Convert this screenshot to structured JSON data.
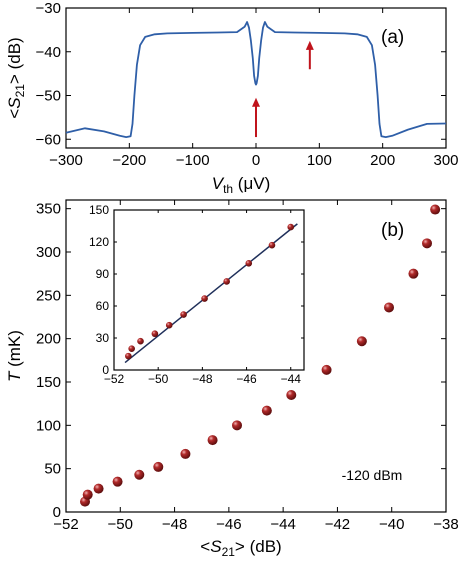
{
  "chart_data": [
    {
      "panel": "(a)",
      "type": "line",
      "xlabel": "V_th (μV)",
      "ylabel": "<S21> (dB)",
      "xlim": [
        -300,
        300
      ],
      "ylim": [
        -62,
        -30
      ],
      "xticks": [
        -300,
        -200,
        -100,
        0,
        100,
        200,
        300
      ],
      "yticks": [
        -60,
        -50,
        -40,
        -30
      ],
      "series": [
        {
          "color": "#2f5fa8",
          "x": [
            -300,
            -270,
            -240,
            -215,
            -205,
            -198,
            -195,
            -192,
            -188,
            -183,
            -175,
            -160,
            -140,
            -100,
            -60,
            -30,
            -18,
            -14,
            -11,
            -8,
            -5,
            -3,
            -1,
            0,
            1,
            3,
            5,
            8,
            11,
            14,
            18,
            30,
            60,
            100,
            140,
            160,
            175,
            183,
            188,
            192,
            195,
            198,
            205,
            215,
            240,
            270,
            300
          ],
          "y": [
            -58.5,
            -57.5,
            -58.2,
            -59.2,
            -59.5,
            -59.3,
            -56.5,
            -50,
            -43,
            -38.5,
            -36.6,
            -36.0,
            -35.8,
            -35.7,
            -35.6,
            -35.5,
            -34.3,
            -33.2,
            -34.5,
            -37.5,
            -41.5,
            -45.5,
            -47.2,
            -47.5,
            -47.2,
            -45.5,
            -41.5,
            -37.5,
            -34.5,
            -33.2,
            -34.3,
            -35.5,
            -35.6,
            -35.7,
            -35.8,
            -36.0,
            -36.6,
            -38.5,
            -43,
            -50,
            -56.5,
            -59.3,
            -59.5,
            -59.2,
            -57.8,
            -56.5,
            -56.4
          ]
        }
      ],
      "arrows": [
        {
          "x": 0,
          "y_from": -59.5,
          "y_to": -50.5,
          "color": "#c0141c"
        },
        {
          "x": 85,
          "y_from": -44,
          "y_to": -37.5,
          "color": "#c0141c"
        }
      ]
    },
    {
      "panel": "(b)",
      "type": "scatter",
      "xlabel": "<S21> (dB)",
      "ylabel": "T (mK)",
      "xlim": [
        -52,
        -38
      ],
      "ylim": [
        0,
        360
      ],
      "xticks": [
        -52,
        -50,
        -48,
        -46,
        -44,
        -42,
        -40,
        -38
      ],
      "yticks": [
        0,
        50,
        100,
        150,
        200,
        250,
        300,
        350
      ],
      "annotation": "-120 dBm",
      "series": [
        {
          "color": "#8b1a1a",
          "x": [
            -51.3,
            -51.2,
            -50.8,
            -50.1,
            -49.3,
            -48.6,
            -47.6,
            -46.6,
            -45.7,
            -44.6,
            -43.7,
            -42.4,
            -41.1,
            -40.1,
            -39.2,
            -38.7,
            -38.4
          ],
          "y": [
            12,
            20,
            27,
            35,
            43,
            52,
            67,
            83,
            100,
            117,
            135,
            164,
            197,
            236,
            275,
            310,
            349
          ]
        }
      ]
    },
    {
      "panel": "inset",
      "type": "scatter",
      "xlim": [
        -52,
        -43.4
      ],
      "ylim": [
        0,
        150
      ],
      "xticks": [
        -52,
        -50,
        -48,
        -46,
        -44
      ],
      "yticks": [
        0,
        30,
        60,
        90,
        120,
        150
      ],
      "series": [
        {
          "color": "#8b1a1a",
          "x": [
            -51.35,
            -51.2,
            -50.8,
            -50.15,
            -49.5,
            -48.85,
            -47.9,
            -46.9,
            -45.9,
            -44.85,
            -44.0
          ],
          "y": [
            13,
            20,
            27,
            34,
            42,
            52,
            67,
            83,
            100,
            117,
            134
          ]
        }
      ],
      "fit_line": {
        "x": [
          -51.5,
          -43.7
        ],
        "y": [
          7,
          137
        ],
        "color": "#1f2f5a"
      }
    }
  ]
}
